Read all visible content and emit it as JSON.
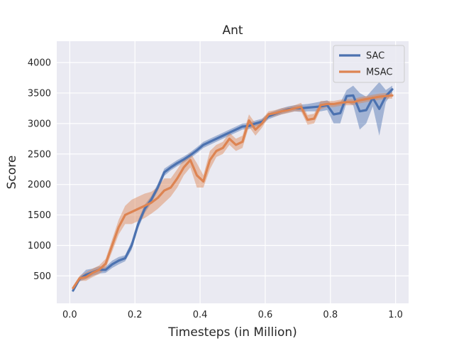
{
  "chart_data": {
    "type": "line",
    "title": "Ant",
    "xlabel": "Timesteps (in Million)",
    "ylabel": "Score",
    "xlim": [
      -0.04,
      1.04
    ],
    "ylim": [
      50,
      4350
    ],
    "xticks": [
      0.0,
      0.2,
      0.4,
      0.6,
      0.8,
      1.0
    ],
    "xtick_labels": [
      "0.0",
      "0.2",
      "0.4",
      "0.6",
      "0.8",
      "1.0"
    ],
    "yticks": [
      500,
      1000,
      1500,
      2000,
      2500,
      3000,
      3500,
      4000
    ],
    "ytick_labels": [
      "500",
      "1000",
      "1500",
      "2000",
      "2500",
      "3000",
      "3500",
      "4000"
    ],
    "grid": true,
    "background": "#EAEAF2",
    "legend_position": "top-right",
    "series": [
      {
        "name": "SAC",
        "color": "#4C72B0",
        "x": [
          0.01,
          0.03,
          0.05,
          0.07,
          0.09,
          0.11,
          0.13,
          0.15,
          0.17,
          0.19,
          0.21,
          0.23,
          0.25,
          0.27,
          0.29,
          0.31,
          0.33,
          0.35,
          0.37,
          0.39,
          0.41,
          0.43,
          0.45,
          0.47,
          0.49,
          0.51,
          0.53,
          0.55,
          0.57,
          0.59,
          0.61,
          0.63,
          0.65,
          0.67,
          0.69,
          0.71,
          0.73,
          0.75,
          0.77,
          0.79,
          0.81,
          0.83,
          0.85,
          0.87,
          0.89,
          0.91,
          0.93,
          0.95,
          0.97,
          0.99
        ],
        "y": [
          260,
          450,
          520,
          560,
          600,
          600,
          690,
          750,
          790,
          1000,
          1350,
          1600,
          1750,
          1950,
          2200,
          2280,
          2350,
          2410,
          2480,
          2560,
          2650,
          2700,
          2750,
          2800,
          2850,
          2900,
          2950,
          2960,
          3000,
          3030,
          3120,
          3160,
          3200,
          3230,
          3250,
          3250,
          3260,
          3270,
          3280,
          3300,
          3150,
          3170,
          3450,
          3460,
          3200,
          3220,
          3420,
          3240,
          3450,
          3560
        ],
        "lower": [
          230,
          410,
          450,
          500,
          540,
          550,
          630,
          690,
          740,
          930,
          1280,
          1530,
          1690,
          1890,
          2140,
          2230,
          2300,
          2360,
          2430,
          2510,
          2600,
          2650,
          2700,
          2750,
          2800,
          2850,
          2900,
          2910,
          2950,
          2980,
          3070,
          3110,
          3150,
          3180,
          3200,
          3190,
          3200,
          3200,
          3200,
          3220,
          3000,
          3000,
          3350,
          3300,
          2900,
          3000,
          3280,
          2800,
          3350,
          3500
        ],
        "upper": [
          290,
          490,
          600,
          620,
          660,
          650,
          750,
          810,
          840,
          1070,
          1420,
          1670,
          1810,
          2010,
          2260,
          2330,
          2400,
          2460,
          2530,
          2610,
          2700,
          2750,
          2800,
          2850,
          2900,
          2950,
          3000,
          3010,
          3050,
          3080,
          3170,
          3210,
          3250,
          3280,
          3300,
          3310,
          3320,
          3340,
          3360,
          3380,
          3300,
          3340,
          3550,
          3620,
          3500,
          3440,
          3560,
          3680,
          3550,
          3620
        ]
      },
      {
        "name": "MSAC",
        "color": "#DD8452",
        "x": [
          0.01,
          0.03,
          0.05,
          0.07,
          0.09,
          0.11,
          0.13,
          0.15,
          0.17,
          0.19,
          0.21,
          0.23,
          0.25,
          0.27,
          0.29,
          0.31,
          0.33,
          0.35,
          0.37,
          0.39,
          0.41,
          0.43,
          0.45,
          0.47,
          0.49,
          0.51,
          0.53,
          0.55,
          0.57,
          0.59,
          0.61,
          0.63,
          0.65,
          0.67,
          0.69,
          0.71,
          0.73,
          0.75,
          0.77,
          0.79,
          0.81,
          0.83,
          0.85,
          0.87,
          0.89,
          0.91,
          0.93,
          0.95,
          0.97,
          0.99
        ],
        "y": [
          300,
          460,
          480,
          550,
          600,
          700,
          1000,
          1300,
          1500,
          1550,
          1600,
          1650,
          1700,
          1780,
          1900,
          1950,
          2100,
          2280,
          2400,
          2150,
          2050,
          2400,
          2550,
          2600,
          2750,
          2650,
          2700,
          3050,
          2900,
          3000,
          3150,
          3170,
          3200,
          3220,
          3250,
          3270,
          3060,
          3080,
          3300,
          3320,
          3320,
          3340,
          3350,
          3350,
          3380,
          3400,
          3420,
          3440,
          3450,
          3460
        ],
        "lower": [
          270,
          420,
          420,
          480,
          530,
          620,
          900,
          1180,
          1350,
          1350,
          1400,
          1450,
          1520,
          1600,
          1700,
          1800,
          1950,
          2150,
          2280,
          1950,
          1950,
          2250,
          2450,
          2500,
          2650,
          2550,
          2600,
          2950,
          2800,
          2930,
          3100,
          3120,
          3150,
          3170,
          3200,
          3200,
          2980,
          3000,
          3230,
          3270,
          3270,
          3290,
          3300,
          3300,
          3330,
          3350,
          3370,
          3390,
          3400,
          3410
        ],
        "upper": [
          330,
          500,
          560,
          620,
          670,
          780,
          1100,
          1420,
          1650,
          1750,
          1800,
          1850,
          1880,
          1960,
          2100,
          2100,
          2250,
          2410,
          2520,
          2350,
          2150,
          2550,
          2650,
          2700,
          2850,
          2750,
          2800,
          3150,
          3000,
          3070,
          3200,
          3220,
          3250,
          3270,
          3300,
          3340,
          3140,
          3160,
          3370,
          3370,
          3370,
          3390,
          3400,
          3400,
          3430,
          3450,
          3470,
          3490,
          3500,
          3510
        ]
      }
    ]
  }
}
